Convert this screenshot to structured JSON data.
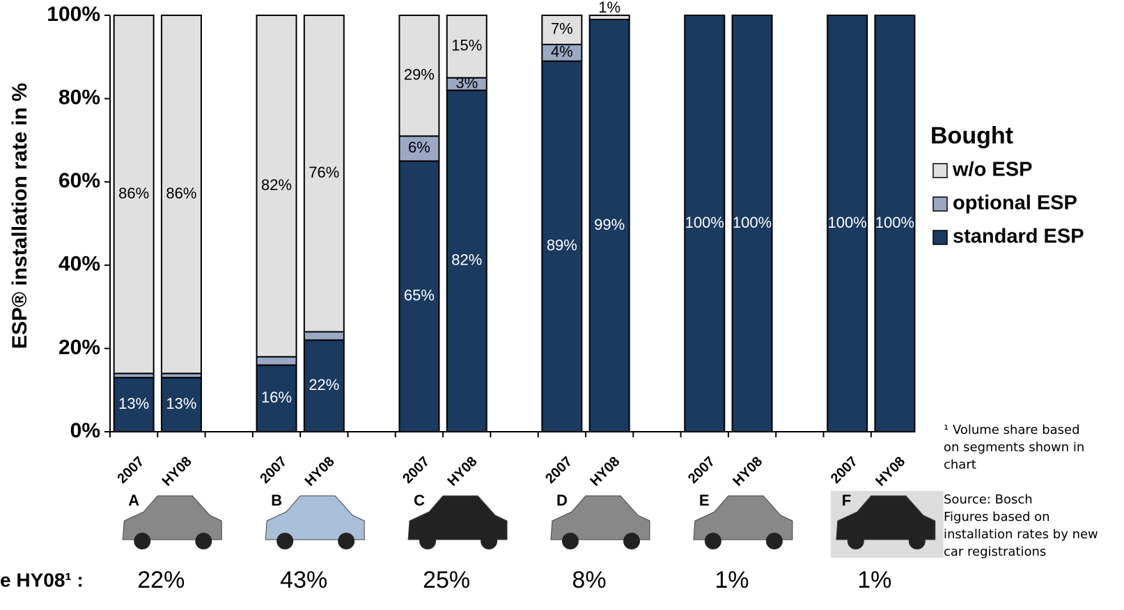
{
  "chart_data": {
    "type": "stacked_bar",
    "y_label": "ESP® installation rate in %",
    "legend_title": "Bought",
    "categories": [
      "2007",
      "HY08",
      "2007",
      "HY08",
      "2007",
      "HY08",
      "2007",
      "HY08",
      "2007",
      "HY08",
      "2007",
      "HY08"
    ],
    "series": [
      {
        "name": "standard ESP",
        "color": "#1a3a60",
        "values": [
          13,
          13,
          16,
          22,
          65,
          82,
          89,
          99,
          100,
          100,
          100,
          100
        ],
        "value_labels": [
          "13%",
          "13%",
          "16%",
          "22%",
          "65%",
          "82%",
          "89%",
          "99%",
          "100%",
          "100%",
          "100%",
          "100%"
        ]
      },
      {
        "name": "optional ESP",
        "color": "#9aa8c4",
        "values": [
          1,
          1,
          2,
          2,
          6,
          3,
          4,
          0,
          0,
          0,
          0,
          0
        ],
        "value_labels": [
          "1%",
          "1%",
          "2%",
          "2%",
          "6%",
          "3%",
          "4%",
          null,
          null,
          null,
          null,
          null
        ]
      },
      {
        "name": "w/o ESP",
        "color": "#e0e0e0",
        "values": [
          86,
          86,
          82,
          76,
          29,
          15,
          7,
          1,
          0,
          0,
          0,
          0
        ],
        "value_labels": [
          "86%",
          "86%",
          "82%",
          "76%",
          "29%",
          "15%",
          "7%",
          "1%",
          null,
          null,
          null,
          null
        ]
      }
    ],
    "ylim": [
      0,
      100
    ],
    "yticks": [
      {
        "value": 0,
        "label": "0%"
      },
      {
        "value": 20,
        "label": "20%"
      },
      {
        "value": 40,
        "label": "40%"
      },
      {
        "value": 60,
        "label": "60%"
      },
      {
        "value": 80,
        "label": "80%"
      },
      {
        "value": 100,
        "label": "100%"
      }
    ],
    "groups": [
      "A",
      "B",
      "C",
      "D",
      "E",
      "F"
    ],
    "share_title": "e HY08¹ :",
    "shares": [
      22,
      43,
      25,
      8,
      1,
      1
    ],
    "share_labels": [
      "22%",
      "43%",
      "25%",
      "8%",
      "1%",
      "1%"
    ],
    "notes": [
      "¹ Volume share based",
      "on segments shown in",
      "chart",
      "Source: Bosch",
      "Figures based on",
      "installation rates by new",
      "car registrations"
    ]
  }
}
